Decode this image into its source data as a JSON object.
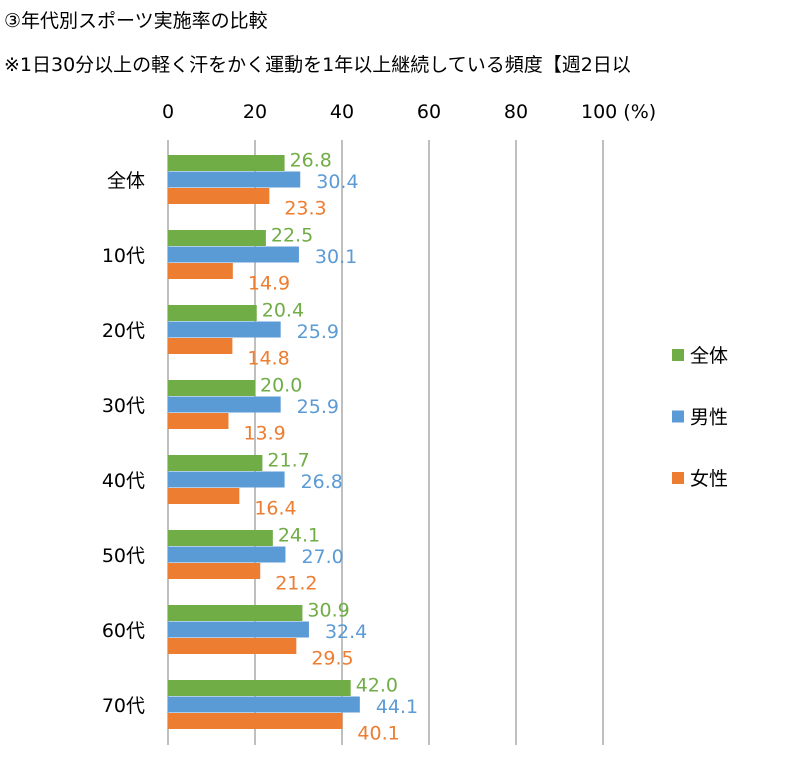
{
  "chart_data": {
    "type": "bar",
    "orientation": "horizontal",
    "title": "③年代別スポーツ実施率の比較",
    "subtitle": "※1日30分以上の軽く汗をかく運動を1年以上継続している頻度【週2日以",
    "categories": [
      "全体",
      "10代",
      "20代",
      "30代",
      "40代",
      "50代",
      "60代",
      "70代"
    ],
    "series": [
      {
        "name": "全体",
        "color": "#70ad47",
        "values": [
          26.8,
          22.5,
          20.4,
          20.0,
          21.7,
          24.1,
          30.9,
          42.0
        ]
      },
      {
        "name": "男性",
        "color": "#5b9bd5",
        "values": [
          30.4,
          30.1,
          25.9,
          25.9,
          26.8,
          27.0,
          32.4,
          44.1
        ]
      },
      {
        "name": "女性",
        "color": "#ed7d31",
        "values": [
          23.3,
          14.9,
          14.8,
          13.9,
          16.4,
          21.2,
          29.5,
          40.1
        ]
      }
    ],
    "xlim": [
      0,
      100
    ],
    "ticks": [
      "0",
      "20",
      "40",
      "60",
      "80",
      "100 (%)"
    ],
    "grid": true,
    "legend_position": "right",
    "data_labels": true
  }
}
